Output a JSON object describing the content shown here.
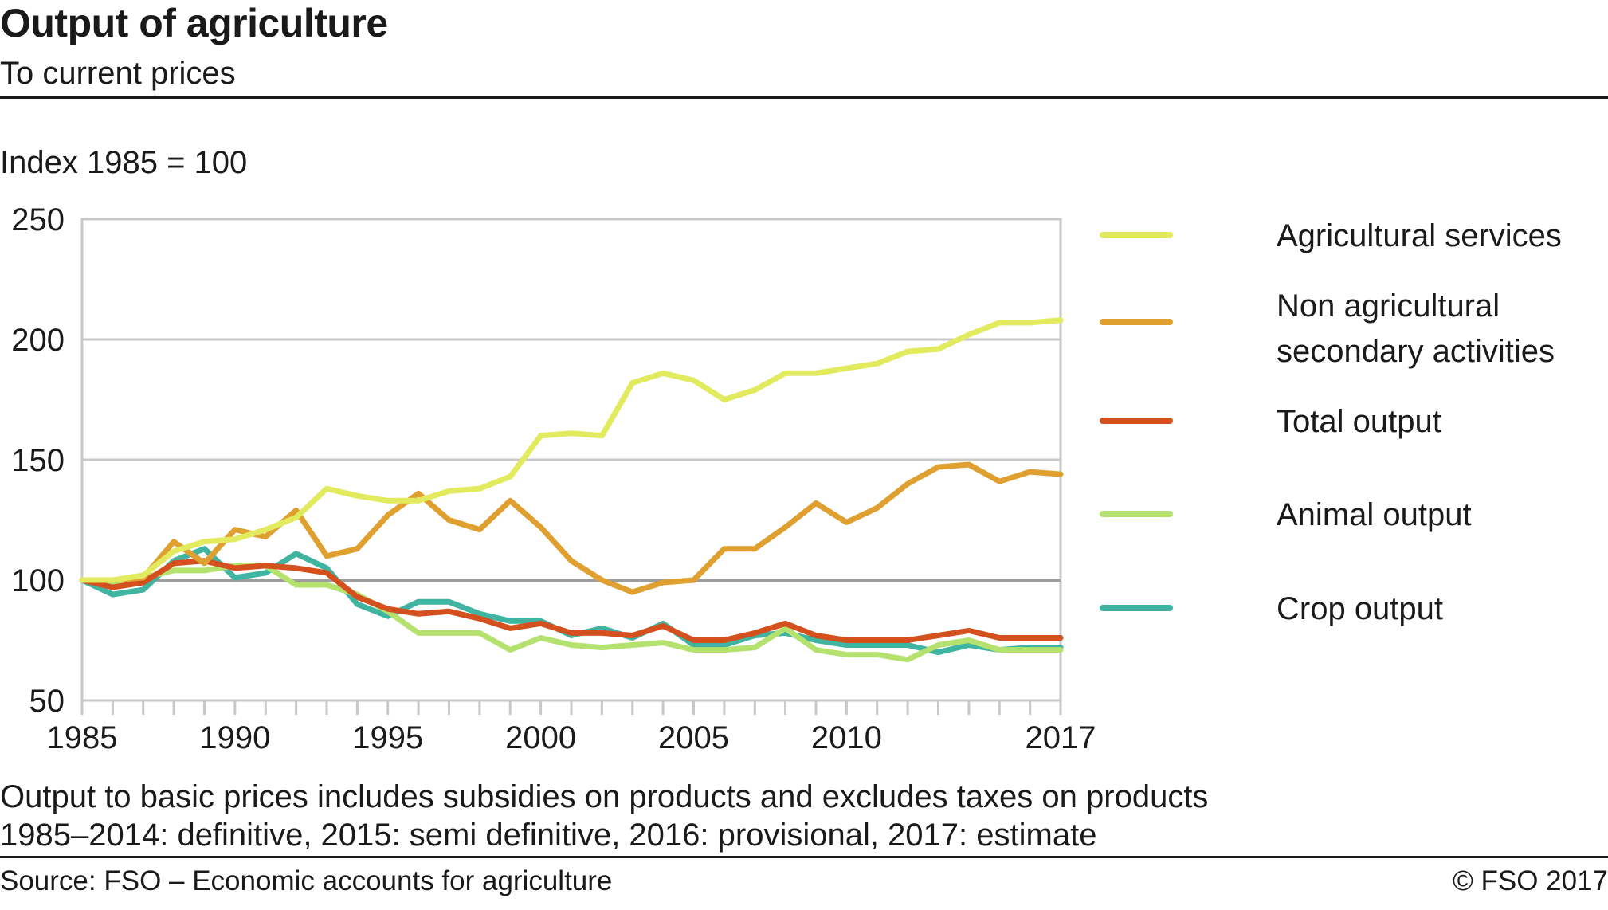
{
  "header": {
    "title": "Output of agriculture",
    "subtitle": "To current prices"
  },
  "unit_label": "Index 1985 = 100",
  "notes": [
    "Output to basic prices includes subsidies on products and excludes taxes on products",
    "1985–2014: definitive, 2015: semi definitive, 2016: provisional, 2017: estimate"
  ],
  "footer": {
    "source": "Source: FSO – Economic accounts for agriculture",
    "copyright": "© FSO  2017"
  },
  "chart_data": {
    "type": "line",
    "title": "Output of agriculture",
    "subtitle": "To current prices",
    "ylabel": "Index 1985 = 100",
    "xlabel": "",
    "ylim": [
      50,
      250
    ],
    "yticks": [
      50,
      100,
      150,
      200,
      250
    ],
    "xlim": [
      1985,
      2017
    ],
    "xtick_labels": [
      1985,
      1990,
      1995,
      2000,
      2005,
      2010,
      2017
    ],
    "baseline": 100,
    "grid": true,
    "legend_position": "right",
    "x": [
      1985,
      1986,
      1987,
      1988,
      1989,
      1990,
      1991,
      1992,
      1993,
      1994,
      1995,
      1996,
      1997,
      1998,
      1999,
      2000,
      2001,
      2002,
      2003,
      2004,
      2005,
      2006,
      2007,
      2008,
      2009,
      2010,
      2011,
      2012,
      2013,
      2014,
      2015,
      2016,
      2017
    ],
    "series": [
      {
        "name": "Agricultural services",
        "color": "#e2ea5e",
        "values": [
          100,
          100,
          102,
          112,
          116,
          117,
          121,
          126,
          138,
          135,
          133,
          133,
          137,
          138,
          143,
          160,
          161,
          160,
          182,
          186,
          183,
          175,
          179,
          186,
          186,
          188,
          190,
          195,
          196,
          202,
          207,
          207,
          208
        ]
      },
      {
        "name": "Non agricultural secondary activities",
        "color": "#e0a030",
        "values": [
          100,
          100,
          101,
          116,
          107,
          121,
          118,
          129,
          110,
          113,
          127,
          136,
          125,
          121,
          133,
          122,
          108,
          100,
          95,
          99,
          100,
          113,
          113,
          122,
          132,
          124,
          130,
          140,
          147,
          148,
          141,
          145,
          144
        ]
      },
      {
        "name": "Total output",
        "color": "#d4501e",
        "values": [
          100,
          97,
          99,
          107,
          108,
          105,
          106,
          105,
          103,
          93,
          88,
          86,
          87,
          84,
          80,
          82,
          78,
          78,
          77,
          81,
          75,
          75,
          78,
          82,
          77,
          75,
          75,
          75,
          77,
          79,
          76,
          76,
          76
        ]
      },
      {
        "name": "Animal output",
        "color": "#b5e26e",
        "values": [
          100,
          99,
          101,
          104,
          104,
          106,
          106,
          98,
          98,
          94,
          87,
          78,
          78,
          78,
          71,
          76,
          73,
          72,
          73,
          74,
          71,
          71,
          72,
          80,
          71,
          69,
          69,
          67,
          73,
          75,
          71,
          71,
          71
        ]
      },
      {
        "name": "Crop output",
        "color": "#3fb4a0",
        "values": [
          100,
          94,
          96,
          108,
          113,
          101,
          103,
          111,
          105,
          90,
          85,
          91,
          91,
          86,
          83,
          83,
          77,
          80,
          76,
          82,
          73,
          73,
          77,
          78,
          75,
          73,
          73,
          73,
          70,
          73,
          71,
          72,
          72
        ]
      }
    ]
  }
}
